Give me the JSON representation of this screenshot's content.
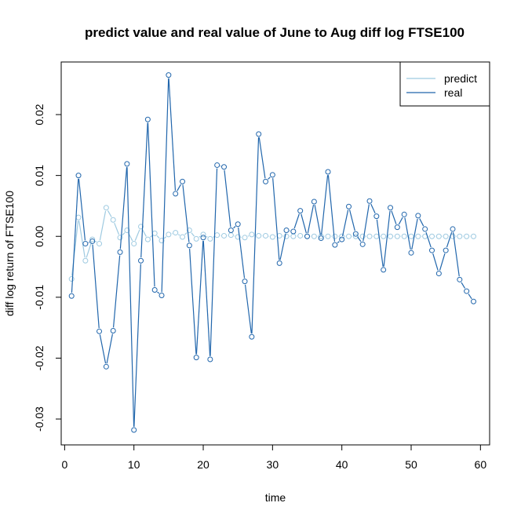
{
  "chart_data": {
    "type": "line",
    "title": "predict value and real value of June to Aug diff log FTSE100",
    "xlabel": "time",
    "ylabel": "diff log return of FTSE100",
    "xlim": [
      1,
      59
    ],
    "ylim": [
      -0.0318,
      0.0265
    ],
    "xticks": [
      0,
      10,
      20,
      30,
      40,
      50,
      60
    ],
    "xtick_labels": [
      "0",
      "10",
      "20",
      "30",
      "40",
      "50",
      "60"
    ],
    "yticks": [
      -0.03,
      -0.02,
      -0.01,
      0.0,
      0.01,
      0.02
    ],
    "ytick_labels": [
      "-0.03",
      "-0.02",
      "-0.01",
      "0.00",
      "0.01",
      "0.02"
    ],
    "grid": false,
    "legend_position": "top-right",
    "series": [
      {
        "name": "predict",
        "color": "#9ecae1",
        "x": [
          1,
          2,
          3,
          4,
          5,
          6,
          7,
          8,
          9,
          10,
          11,
          12,
          13,
          14,
          15,
          16,
          17,
          18,
          19,
          20,
          21,
          22,
          23,
          24,
          25,
          26,
          27,
          28,
          29,
          30,
          31,
          32,
          33,
          34,
          35,
          36,
          37,
          38,
          39,
          40,
          41,
          42,
          43,
          44,
          45,
          46,
          47,
          48,
          49,
          50,
          51,
          52,
          53,
          54,
          55,
          56,
          57,
          58,
          59
        ],
        "values": [
          -0.007,
          0.0031,
          -0.004,
          -0.0005,
          -0.0012,
          0.0047,
          0.0027,
          -0.0002,
          0.001,
          -0.0012,
          0.0016,
          -0.0005,
          0.0005,
          -0.0007,
          0.0003,
          0.0006,
          -0.0001,
          0.001,
          -0.0004,
          0.0003,
          -0.0004,
          0.0002,
          0.0001,
          0.0002,
          -0.0001,
          -0.0002,
          0.0003,
          0.0001,
          0.0001,
          -0.0001,
          0.0001,
          0.0,
          0.0,
          0.0001,
          0.0,
          0.0,
          0.0,
          0.0,
          0.0,
          0.0,
          0.0,
          0.0,
          0.0,
          0.0,
          0.0,
          0.0,
          0.0,
          0.0,
          0.0,
          0.0,
          0.0,
          0.0,
          0.0,
          0.0,
          0.0,
          0.0,
          0.0,
          0.0,
          0.0
        ]
      },
      {
        "name": "real",
        "color": "#2166ac",
        "x": [
          1,
          2,
          3,
          4,
          5,
          6,
          7,
          8,
          9,
          10,
          11,
          12,
          13,
          14,
          15,
          16,
          17,
          18,
          19,
          20,
          21,
          22,
          23,
          24,
          25,
          26,
          27,
          28,
          29,
          30,
          31,
          32,
          33,
          34,
          35,
          36,
          37,
          38,
          39,
          40,
          41,
          42,
          43,
          44,
          45,
          46,
          47,
          48,
          49,
          50,
          51,
          52,
          53,
          54,
          55,
          56,
          57,
          58,
          59
        ],
        "values": [
          -0.0098,
          0.01,
          -0.0012,
          -0.0008,
          -0.0156,
          -0.0214,
          -0.0155,
          -0.0026,
          0.0119,
          -0.0318,
          -0.004,
          0.0192,
          -0.0088,
          -0.0097,
          0.0265,
          0.007,
          0.009,
          -0.0015,
          -0.0199,
          -0.0002,
          -0.0202,
          0.0117,
          0.0114,
          0.001,
          0.002,
          -0.0074,
          -0.0165,
          0.0168,
          0.009,
          0.0101,
          -0.0044,
          0.001,
          0.0008,
          0.0042,
          0.0,
          0.0057,
          -0.0003,
          0.0106,
          -0.0014,
          -0.0005,
          0.0049,
          0.0004,
          -0.0013,
          0.0058,
          0.0033,
          -0.0055,
          0.0047,
          0.0015,
          0.0036,
          -0.0027,
          0.0034,
          0.0012,
          -0.0023,
          -0.0061,
          -0.0023,
          0.0012,
          -0.0071,
          -0.009,
          -0.0107
        ]
      }
    ]
  }
}
